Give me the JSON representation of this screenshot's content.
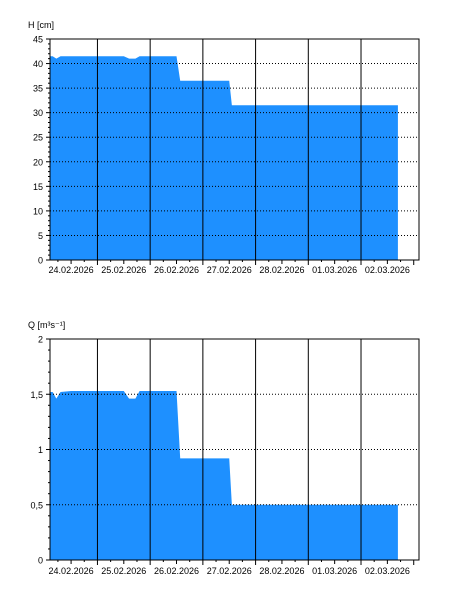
{
  "chart_data": [
    {
      "type": "area",
      "ylabel": "H [cm]",
      "ylim": [
        0,
        45
      ],
      "yticks": [
        0,
        5,
        10,
        15,
        20,
        25,
        30,
        35,
        40,
        45
      ],
      "ytick_labels": [
        "0",
        "5",
        "10",
        "15",
        "20",
        "25",
        "30",
        "35",
        "40",
        "45"
      ],
      "xlim": [
        23.6,
        30.6
      ],
      "xtick_positions": [
        24,
        25,
        26,
        27,
        28,
        29,
        30
      ],
      "xtick_labels": [
        "24.02.2026",
        "25.02.2026",
        "26.02.2026",
        "27.02.2026",
        "28.02.2026",
        "01.03.2026",
        "02.03.2026"
      ],
      "day_lines": [
        24.5,
        25.5,
        26.5,
        27.5,
        28.5,
        29.5
      ],
      "grid": "dotted horizontal lines, solid vertical lines at day boundaries",
      "fill_color": "#1e90ff",
      "x": [
        23.6,
        23.65,
        23.72,
        23.8,
        24.0,
        24.3,
        24.6,
        25.0,
        25.1,
        25.22,
        25.3,
        25.5,
        25.6,
        26.0,
        26.07,
        26.5,
        27.0,
        27.05,
        27.5,
        28.0,
        29.0,
        30.0,
        30.2
      ],
      "y": [
        41.5,
        41.5,
        41,
        41.5,
        41.5,
        41.5,
        41.5,
        41.5,
        41,
        41,
        41.5,
        41.5,
        41.5,
        41.5,
        36.5,
        36.5,
        36.5,
        31.5,
        31.5,
        31.5,
        31.5,
        31.5,
        31.5
      ]
    },
    {
      "type": "area",
      "ylabel": "Q [m³s⁻¹]",
      "ylim": [
        0,
        2
      ],
      "yticks": [
        0,
        0.5,
        1,
        1.5,
        2
      ],
      "ytick_labels": [
        "0",
        "0,5",
        "1",
        "1,5",
        "2"
      ],
      "xlim": [
        23.6,
        30.6
      ],
      "xtick_positions": [
        24,
        25,
        26,
        27,
        28,
        29,
        30
      ],
      "xtick_labels": [
        "24.02.2026",
        "25.02.2026",
        "26.02.2026",
        "27.02.2026",
        "28.02.2026",
        "01.03.2026",
        "02.03.2026"
      ],
      "day_lines": [
        24.5,
        25.5,
        26.5,
        27.5,
        28.5,
        29.5
      ],
      "grid": "dotted horizontal lines, solid vertical lines at day boundaries",
      "fill_color": "#1e90ff",
      "x": [
        23.6,
        23.65,
        23.72,
        23.8,
        24.0,
        24.3,
        24.6,
        25.0,
        25.1,
        25.22,
        25.3,
        25.5,
        25.6,
        26.0,
        26.07,
        26.5,
        27.0,
        27.05,
        27.5,
        28.0,
        29.0,
        30.0,
        30.2
      ],
      "y": [
        1.52,
        1.52,
        1.46,
        1.52,
        1.53,
        1.53,
        1.53,
        1.53,
        1.46,
        1.46,
        1.53,
        1.53,
        1.53,
        1.53,
        0.92,
        0.92,
        0.92,
        0.5,
        0.5,
        0.5,
        0.5,
        0.5,
        0.5
      ]
    }
  ]
}
